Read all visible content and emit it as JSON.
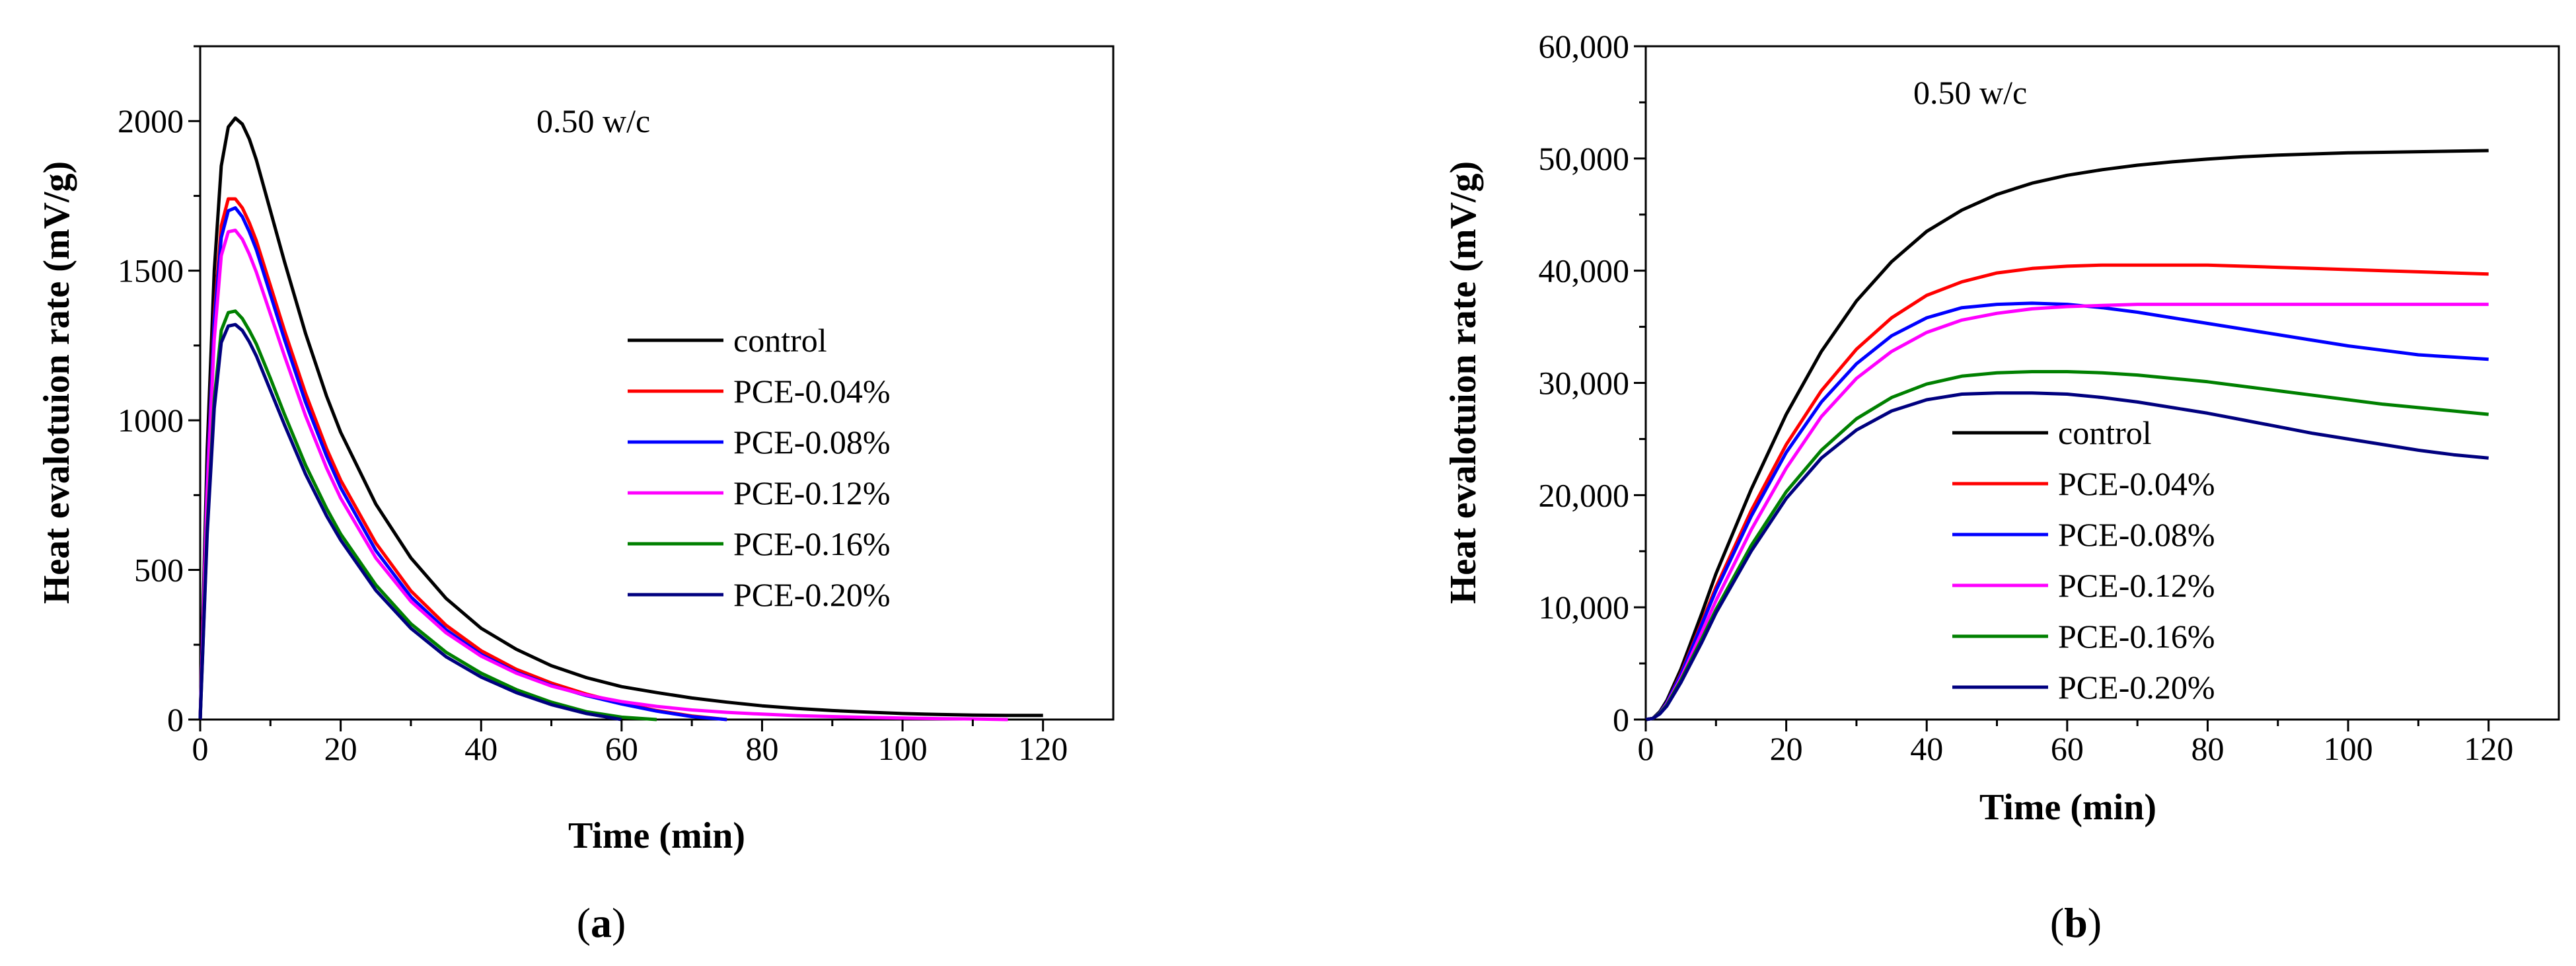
{
  "chart_data": [
    {
      "id": "a",
      "type": "line",
      "caption_prefix": "(",
      "caption_letter": "a",
      "caption_suffix": ")",
      "title": "",
      "xlabel": "Time (min)",
      "ylabel": "Heat evalotuion rate (mV/g)",
      "annotation": "0.50 w/c",
      "xlim": [
        0,
        130
      ],
      "ylim": [
        0,
        2250
      ],
      "xticks": [
        0,
        20,
        40,
        60,
        80,
        100,
        120
      ],
      "xtick_labels": [
        "0",
        "20",
        "40",
        "60",
        "80",
        "100",
        "120"
      ],
      "yticks": [
        0,
        500,
        1000,
        1500,
        2000
      ],
      "ytick_labels": [
        "0",
        "500",
        "1000",
        "1500",
        "2000"
      ],
      "grid": false,
      "legend_position": "center-right",
      "x": [
        0,
        1,
        2,
        3,
        4,
        5,
        6,
        7,
        8,
        10,
        12,
        15,
        18,
        20,
        25,
        30,
        35,
        40,
        45,
        50,
        55,
        60,
        65,
        70,
        75,
        80,
        85,
        90,
        95,
        100,
        105,
        110,
        115,
        120
      ],
      "series": [
        {
          "name": "control",
          "color": "#000000",
          "values": [
            0,
            900,
            1500,
            1850,
            1980,
            2010,
            1990,
            1940,
            1870,
            1700,
            1530,
            1290,
            1080,
            960,
            720,
            540,
            405,
            305,
            235,
            180,
            140,
            110,
            90,
            72,
            58,
            46,
            37,
            30,
            25,
            20,
            17,
            15,
            14,
            14
          ]
        },
        {
          "name": "PCE-0.04%",
          "color": "#ff0000",
          "values": [
            0,
            800,
            1350,
            1650,
            1740,
            1740,
            1710,
            1660,
            1600,
            1450,
            1300,
            1090,
            905,
            800,
            590,
            430,
            315,
            230,
            168,
            122,
            85,
            55,
            30,
            12,
            0,
            null,
            null,
            null,
            null,
            null,
            null,
            null,
            null,
            null
          ]
        },
        {
          "name": "PCE-0.08%",
          "color": "#0000ff",
          "values": [
            0,
            790,
            1330,
            1610,
            1700,
            1710,
            1680,
            1630,
            1570,
            1420,
            1270,
            1060,
            880,
            775,
            565,
            410,
            300,
            218,
            158,
            114,
            80,
            52,
            28,
            10,
            0,
            null,
            null,
            null,
            null,
            null,
            null,
            null,
            null,
            null
          ]
        },
        {
          "name": "PCE-0.12%",
          "color": "#ff00ff",
          "values": [
            0,
            760,
            1270,
            1550,
            1630,
            1635,
            1605,
            1555,
            1495,
            1355,
            1215,
            1015,
            840,
            740,
            540,
            395,
            290,
            212,
            155,
            112,
            82,
            60,
            44,
            32,
            24,
            18,
            13,
            10,
            7,
            5,
            3,
            2,
            0,
            null
          ]
        },
        {
          "name": "PCE-0.16%",
          "color": "#008000",
          "values": [
            0,
            640,
            1070,
            1300,
            1360,
            1365,
            1340,
            1300,
            1255,
            1140,
            1020,
            850,
            705,
            620,
            450,
            320,
            225,
            155,
            100,
            58,
            26,
            8,
            0,
            null,
            null,
            null,
            null,
            null,
            null,
            null,
            null,
            null,
            null,
            null
          ]
        },
        {
          "name": "PCE-0.20%",
          "color": "#00007f",
          "values": [
            0,
            620,
            1040,
            1260,
            1315,
            1320,
            1300,
            1262,
            1215,
            1100,
            985,
            820,
            680,
            600,
            432,
            305,
            210,
            142,
            90,
            50,
            20,
            0,
            null,
            null,
            null,
            null,
            null,
            null,
            null,
            null,
            null,
            null,
            null,
            null
          ]
        }
      ]
    },
    {
      "id": "b",
      "type": "line",
      "caption_prefix": "(",
      "caption_letter": "b",
      "caption_suffix": ")",
      "title": "",
      "xlabel": "Time (min)",
      "ylabel": "Heat evalotuion rate (mV/g)",
      "annotation": "0.50 w/c",
      "xlim": [
        0,
        130
      ],
      "ylim": [
        0,
        60000
      ],
      "xticks": [
        0,
        20,
        40,
        60,
        80,
        100,
        120
      ],
      "xtick_labels": [
        "0",
        "20",
        "40",
        "60",
        "80",
        "100",
        "120"
      ],
      "yticks": [
        0,
        10000,
        20000,
        30000,
        40000,
        50000,
        60000
      ],
      "ytick_labels": [
        "0",
        "10,000",
        "20,000",
        "30,000",
        "40,000",
        "50,000",
        "60,000"
      ],
      "grid": false,
      "legend_position": "lower-right",
      "x": [
        0,
        1,
        2,
        3,
        5,
        8,
        10,
        15,
        20,
        25,
        30,
        35,
        40,
        45,
        50,
        55,
        60,
        65,
        70,
        75,
        80,
        85,
        90,
        95,
        100,
        105,
        110,
        115,
        120
      ],
      "series": [
        {
          "name": "control",
          "color": "#000000",
          "values": [
            0,
            100,
            700,
            1700,
            4500,
            9500,
            13000,
            20500,
            27200,
            32800,
            37300,
            40800,
            43500,
            45400,
            46800,
            47800,
            48500,
            49000,
            49400,
            49700,
            49950,
            50150,
            50300,
            50400,
            50500,
            50550,
            50600,
            50650,
            50700
          ]
        },
        {
          "name": "PCE-0.04%",
          "color": "#ff0000",
          "values": [
            0,
            100,
            600,
            1500,
            4100,
            8700,
            11800,
            18600,
            24500,
            29300,
            33000,
            35800,
            37800,
            39000,
            39800,
            40200,
            40400,
            40500,
            40500,
            40500,
            40500,
            40400,
            40300,
            40200,
            40100,
            40000,
            39900,
            39800,
            39700
          ]
        },
        {
          "name": "PCE-0.08%",
          "color": "#0000ff",
          "values": [
            0,
            100,
            600,
            1500,
            4000,
            8500,
            11500,
            18100,
            23800,
            28300,
            31700,
            34200,
            35800,
            36700,
            37000,
            37100,
            37000,
            36700,
            36300,
            35800,
            35300,
            34800,
            34300,
            33800,
            33300,
            32900,
            32500,
            32300,
            32100
          ]
        },
        {
          "name": "PCE-0.12%",
          "color": "#ff00ff",
          "values": [
            0,
            100,
            550,
            1400,
            3700,
            7800,
            10600,
            16900,
            22400,
            27000,
            30400,
            32800,
            34500,
            35600,
            36200,
            36600,
            36800,
            36900,
            37000,
            37000,
            37000,
            37000,
            37000,
            37000,
            37000,
            37000,
            37000,
            37000,
            37000
          ]
        },
        {
          "name": "PCE-0.16%",
          "color": "#008000",
          "values": [
            0,
            100,
            550,
            1300,
            3500,
            7200,
            9800,
            15500,
            20300,
            24000,
            26800,
            28700,
            29900,
            30600,
            30900,
            31000,
            31000,
            30900,
            30700,
            30400,
            30100,
            29700,
            29300,
            28900,
            28500,
            28100,
            27800,
            27500,
            27200
          ]
        },
        {
          "name": "PCE-0.20%",
          "color": "#00007f",
          "values": [
            0,
            100,
            500,
            1200,
            3300,
            6900,
            9500,
            15000,
            19700,
            23300,
            25800,
            27500,
            28500,
            29000,
            29100,
            29100,
            29000,
            28700,
            28300,
            27800,
            27300,
            26700,
            26100,
            25500,
            25000,
            24500,
            24000,
            23600,
            23300
          ]
        }
      ]
    }
  ]
}
